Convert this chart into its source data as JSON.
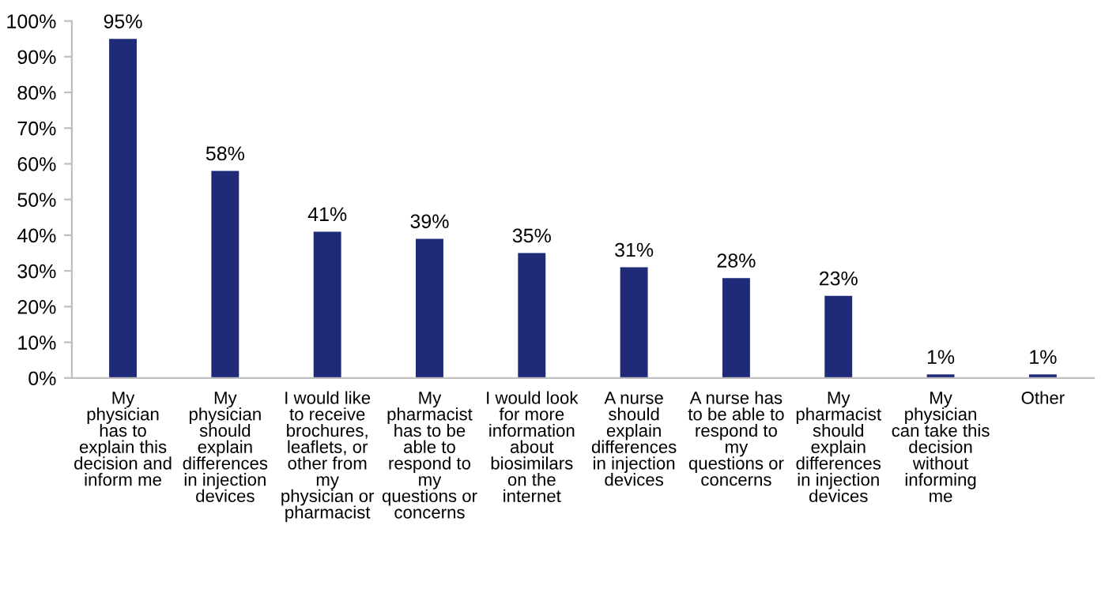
{
  "chart_data": {
    "type": "bar",
    "categories": [
      "My\nphysician\nhas to\nexplain this\ndecision and\ninform me",
      "My\nphysician\nshould\nexplain\ndifferences\nin injection\ndevices",
      "I would like\nto receive\nbrochures,\nleaflets, or\nother from\nmy\nphysician or\npharmacist",
      "My\npharmacist\nhas to be\nable to\nrespond to\nmy\nquestions or\nconcerns",
      "I would look\nfor more\ninformation\nabout\nbiosimilars\non the\ninternet",
      "A nurse\nshould\nexplain\ndifferences\nin injection\ndevices",
      "A nurse has\nto be able to\nrespond to\nmy\nquestions or\nconcerns",
      "My\npharmacist\nshould\nexplain\ndifferences\nin injection\ndevices",
      "My\nphysician\ncan take this\ndecision\nwithout\ninforming\nme",
      "Other"
    ],
    "values": [
      95,
      58,
      41,
      39,
      35,
      31,
      28,
      23,
      1,
      1
    ],
    "value_labels": [
      "95%",
      "58%",
      "41%",
      "39%",
      "35%",
      "31%",
      "28%",
      "23%",
      "1%",
      "1%"
    ],
    "color": "#1f2a78",
    "ylim": [
      0,
      100
    ],
    "yticks": [
      {
        "value": 0,
        "label": "0%"
      },
      {
        "value": 10,
        "label": "10%"
      },
      {
        "value": 20,
        "label": "20%"
      },
      {
        "value": 30,
        "label": "30%"
      },
      {
        "value": 40,
        "label": "40%"
      },
      {
        "value": 50,
        "label": "50%"
      },
      {
        "value": 60,
        "label": "60%"
      },
      {
        "value": 70,
        "label": "70%"
      },
      {
        "value": 80,
        "label": "80%"
      },
      {
        "value": 90,
        "label": "90%"
      },
      {
        "value": 100,
        "label": "100%"
      }
    ],
    "grid": false,
    "legend": false
  }
}
